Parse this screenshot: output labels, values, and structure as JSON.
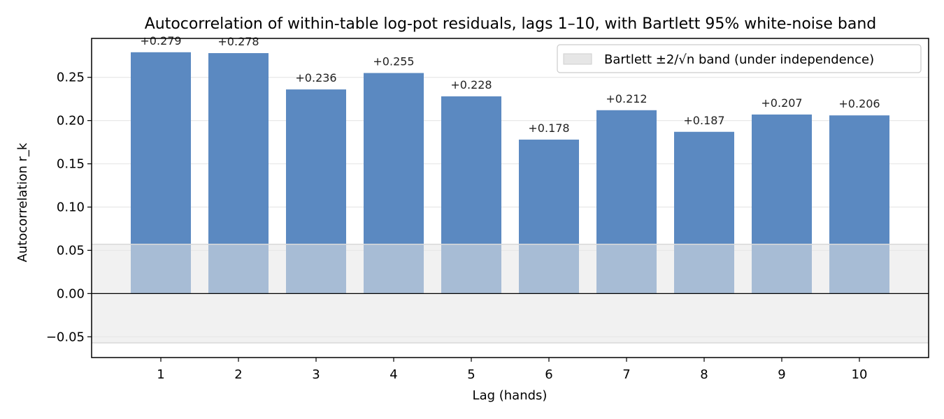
{
  "chart_data": {
    "type": "bar",
    "title": "Autocorrelation of within-table log-pot residuals, lags 1–10, with Bartlett 95% white-noise band",
    "xlabel": "Lag (hands)",
    "ylabel": "Autocorrelation r_k",
    "categories": [
      "1",
      "2",
      "3",
      "4",
      "5",
      "6",
      "7",
      "8",
      "9",
      "10"
    ],
    "values": [
      0.279,
      0.278,
      0.236,
      0.255,
      0.228,
      0.178,
      0.212,
      0.187,
      0.207,
      0.206
    ],
    "data_labels": [
      "+0.279",
      "+0.278",
      "+0.236",
      "+0.255",
      "+0.228",
      "+0.178",
      "+0.212",
      "+0.187",
      "+0.207",
      "+0.206"
    ],
    "ylim": [
      -0.074,
      0.295
    ],
    "yticks": [
      -0.05,
      0.0,
      0.05,
      0.1,
      0.15,
      0.2,
      0.25
    ],
    "ytick_labels": [
      "−0.05",
      "0.00",
      "0.05",
      "0.10",
      "0.15",
      "0.20",
      "0.25"
    ],
    "band": {
      "lower": -0.057,
      "upper": 0.057,
      "label": "Bartlett ±2/√n band (under independence)"
    },
    "grid": "horizontal",
    "legend_position": "top-right",
    "colors": {
      "bar": "#5b89c1",
      "band": "#e6e6e6",
      "zero_line": "#000000"
    }
  }
}
